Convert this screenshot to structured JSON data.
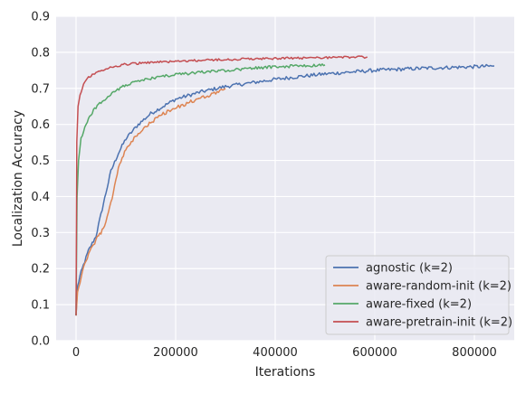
{
  "chart_data": {
    "type": "line",
    "title": "",
    "xlabel": "Iterations",
    "ylabel": "Localization Accuracy",
    "xlim": [
      -40000,
      880000
    ],
    "ylim": [
      0.0,
      0.9
    ],
    "xticks": [
      0,
      200000,
      400000,
      600000,
      800000
    ],
    "xtick_labels": [
      "0",
      "200000",
      "400000",
      "600000",
      "800000"
    ],
    "yticks": [
      0.0,
      0.1,
      0.2,
      0.3,
      0.4,
      0.5,
      0.6,
      0.7,
      0.8,
      0.9
    ],
    "ytick_labels": [
      "0.0",
      "0.1",
      "0.2",
      "0.3",
      "0.4",
      "0.5",
      "0.6",
      "0.7",
      "0.8",
      "0.9"
    ],
    "grid": true,
    "legend_position": "bottom-right",
    "background": "#eaeaf2",
    "series": [
      {
        "name": "agnostic (k=2)",
        "color": "#4c72b0",
        "noise": 0.005,
        "points": [
          [
            0,
            0.07
          ],
          [
            3000,
            0.15
          ],
          [
            8000,
            0.18
          ],
          [
            15000,
            0.21
          ],
          [
            25000,
            0.25
          ],
          [
            40000,
            0.29
          ],
          [
            55000,
            0.38
          ],
          [
            70000,
            0.47
          ],
          [
            85000,
            0.52
          ],
          [
            100000,
            0.56
          ],
          [
            125000,
            0.6
          ],
          [
            150000,
            0.63
          ],
          [
            175000,
            0.65
          ],
          [
            200000,
            0.67
          ],
          [
            250000,
            0.69
          ],
          [
            300000,
            0.705
          ],
          [
            350000,
            0.715
          ],
          [
            400000,
            0.725
          ],
          [
            450000,
            0.733
          ],
          [
            500000,
            0.74
          ],
          [
            550000,
            0.745
          ],
          [
            600000,
            0.75
          ],
          [
            650000,
            0.753
          ],
          [
            700000,
            0.756
          ],
          [
            750000,
            0.758
          ],
          [
            800000,
            0.76
          ],
          [
            840000,
            0.762
          ]
        ]
      },
      {
        "name": "aware-random-init (k=2)",
        "color": "#dd8452",
        "noise": 0.005,
        "points": [
          [
            0,
            0.07
          ],
          [
            3000,
            0.14
          ],
          [
            8000,
            0.16
          ],
          [
            15000,
            0.2
          ],
          [
            25000,
            0.24
          ],
          [
            40000,
            0.28
          ],
          [
            55000,
            0.31
          ],
          [
            70000,
            0.38
          ],
          [
            85000,
            0.48
          ],
          [
            100000,
            0.53
          ],
          [
            125000,
            0.575
          ],
          [
            150000,
            0.605
          ],
          [
            175000,
            0.63
          ],
          [
            200000,
            0.645
          ],
          [
            225000,
            0.66
          ],
          [
            250000,
            0.672
          ],
          [
            275000,
            0.685
          ],
          [
            300000,
            0.7
          ]
        ]
      },
      {
        "name": "aware-fixed (k=2)",
        "color": "#55a868",
        "noise": 0.004,
        "points": [
          [
            0,
            0.07
          ],
          [
            2000,
            0.4
          ],
          [
            5000,
            0.5
          ],
          [
            10000,
            0.56
          ],
          [
            20000,
            0.6
          ],
          [
            35000,
            0.64
          ],
          [
            50000,
            0.66
          ],
          [
            75000,
            0.69
          ],
          [
            100000,
            0.71
          ],
          [
            150000,
            0.728
          ],
          [
            200000,
            0.738
          ],
          [
            250000,
            0.745
          ],
          [
            300000,
            0.75
          ],
          [
            350000,
            0.755
          ],
          [
            400000,
            0.76
          ],
          [
            450000,
            0.762
          ],
          [
            500000,
            0.765
          ]
        ]
      },
      {
        "name": "aware-pretrain-init (k=2)",
        "color": "#c44e52",
        "noise": 0.003,
        "points": [
          [
            0,
            0.07
          ],
          [
            1500,
            0.55
          ],
          [
            4000,
            0.65
          ],
          [
            8000,
            0.68
          ],
          [
            15000,
            0.71
          ],
          [
            25000,
            0.73
          ],
          [
            40000,
            0.745
          ],
          [
            60000,
            0.755
          ],
          [
            80000,
            0.762
          ],
          [
            100000,
            0.767
          ],
          [
            150000,
            0.772
          ],
          [
            200000,
            0.775
          ],
          [
            300000,
            0.78
          ],
          [
            400000,
            0.783
          ],
          [
            500000,
            0.785
          ],
          [
            585000,
            0.787
          ]
        ]
      }
    ]
  }
}
